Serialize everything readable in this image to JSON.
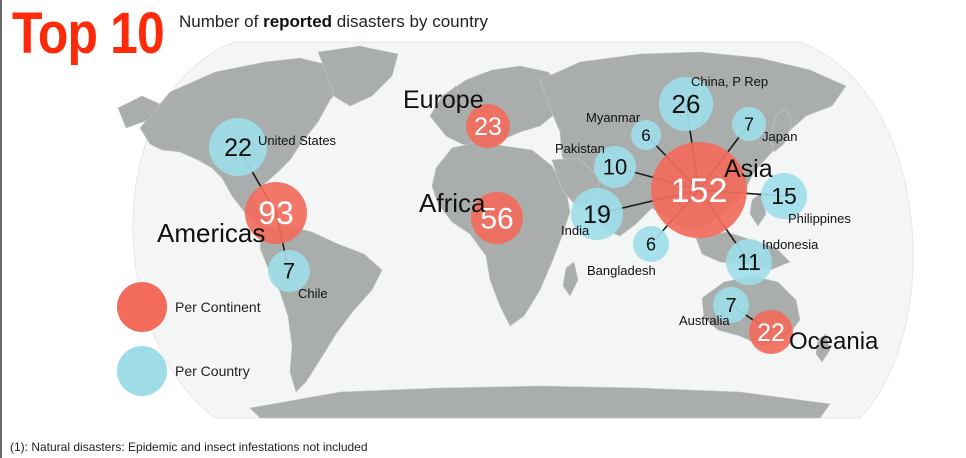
{
  "title": "Top 10",
  "subtitle": {
    "prefix": "Number of ",
    "emphasis": "reported",
    "suffix": " disasters by country"
  },
  "footnote": "(1): Natural disasters: Epidemic and insect infestations not included",
  "legend": {
    "continent": "Per Continent",
    "country": "Per Country"
  },
  "colors": {
    "continent": "#f26b5b",
    "country": "#9edde8",
    "land": "#a9adab",
    "ocean": "#f4f5f5",
    "title": "#ff2a0a"
  },
  "continents": [
    {
      "name": "Americas",
      "value": "93"
    },
    {
      "name": "Europe",
      "value": "23"
    },
    {
      "name": "Africa",
      "value": "56"
    },
    {
      "name": "Asia",
      "value": "152"
    },
    {
      "name": "Oceania",
      "value": "22"
    }
  ],
  "countries": [
    {
      "name": "United States",
      "value": "22",
      "continent": "Americas"
    },
    {
      "name": "Chile",
      "value": "7",
      "continent": "Americas"
    },
    {
      "name": "China, P Rep",
      "value": "26",
      "continent": "Asia"
    },
    {
      "name": "Myanmar",
      "value": "6",
      "continent": "Asia"
    },
    {
      "name": "Pakistan",
      "value": "10",
      "continent": "Asia"
    },
    {
      "name": "India",
      "value": "19",
      "continent": "Asia"
    },
    {
      "name": "Bangladesh",
      "value": "6",
      "continent": "Asia"
    },
    {
      "name": "Japan",
      "value": "7",
      "continent": "Asia"
    },
    {
      "name": "Philippines",
      "value": "15",
      "continent": "Asia"
    },
    {
      "name": "Indonesia",
      "value": "11",
      "continent": "Asia"
    },
    {
      "name": "Australia",
      "value": "7",
      "continent": "Oceania"
    }
  ]
}
